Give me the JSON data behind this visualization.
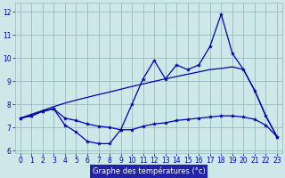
{
  "xlabel": "Graphe des températures (°c)",
  "bg_color": "#cce8e8",
  "grid_color": "#99bbbb",
  "line_color": "#0000aa",
  "xlabel_bg": "#2222aa",
  "xlabel_fg": "#ffffff",
  "hours": [
    0,
    1,
    2,
    3,
    4,
    5,
    6,
    7,
    8,
    9,
    10,
    11,
    12,
    13,
    14,
    15,
    16,
    17,
    18,
    19,
    20,
    21,
    22,
    23
  ],
  "temp_curve": [
    7.4,
    7.5,
    7.7,
    7.8,
    7.1,
    6.8,
    6.4,
    6.3,
    6.3,
    6.9,
    8.0,
    9.1,
    9.9,
    9.1,
    9.7,
    9.5,
    9.7,
    10.5,
    11.9,
    10.2,
    9.5,
    8.6,
    7.5,
    6.6
  ],
  "temp_min": [
    7.4,
    7.5,
    7.7,
    7.8,
    7.4,
    7.3,
    7.15,
    7.05,
    7.0,
    6.9,
    6.9,
    7.05,
    7.15,
    7.2,
    7.3,
    7.35,
    7.4,
    7.45,
    7.5,
    7.5,
    7.45,
    7.35,
    7.1,
    6.6
  ],
  "temp_line": [
    7.4,
    7.57,
    7.73,
    7.9,
    8.05,
    8.18,
    8.3,
    8.42,
    8.53,
    8.65,
    8.77,
    8.88,
    8.99,
    9.1,
    9.2,
    9.3,
    9.4,
    9.5,
    9.55,
    9.62,
    9.5,
    8.6,
    7.5,
    6.6
  ],
  "ylim": [
    5.9,
    12.4
  ],
  "yticks": [
    6,
    7,
    8,
    9,
    10,
    11,
    12
  ],
  "xlim": [
    -0.5,
    23.5
  ],
  "tick_fontsize": 5.5,
  "xlabel_fontsize": 6.0
}
